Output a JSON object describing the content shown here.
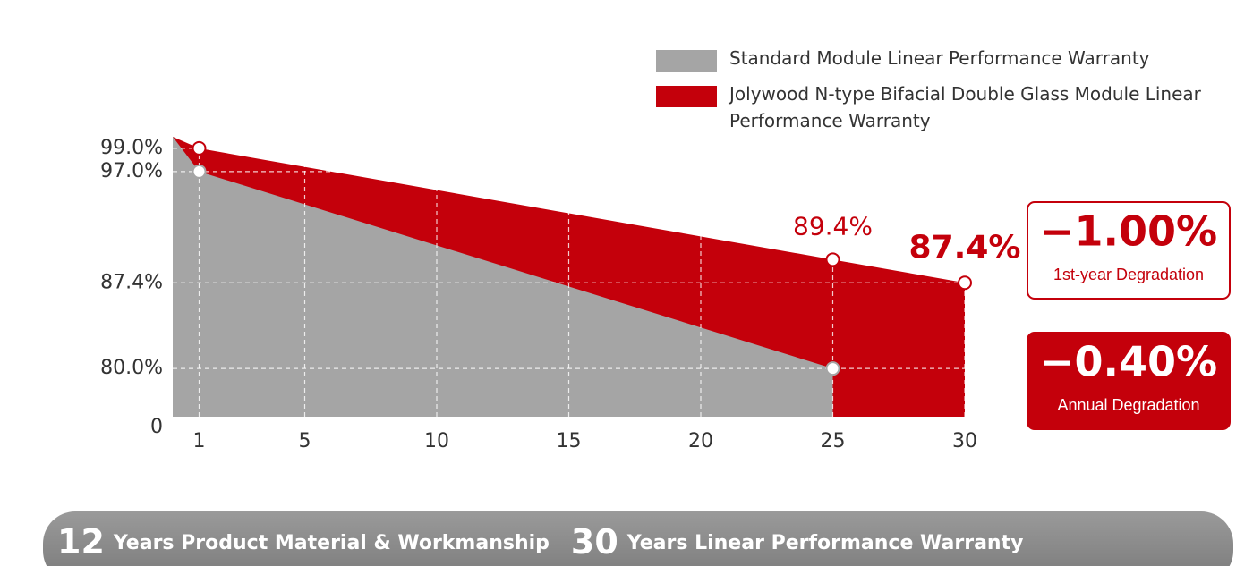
{
  "chart_data": {
    "type": "area",
    "series": [
      {
        "name": "Jolywood N-type Bifacial Double Glass Module Linear Performance Warranty",
        "color": "#c4000b",
        "x": [
          0,
          1,
          25,
          30
        ],
        "values": [
          100,
          99,
          89.4,
          87.4
        ],
        "value_labels": [
          null,
          null,
          "89.4%",
          "87.4%"
        ]
      },
      {
        "name": "Standard Module Linear Performance Warranty",
        "color": "#a5a5a5",
        "x": [
          0,
          1,
          25
        ],
        "values": [
          100,
          97,
          80
        ]
      }
    ],
    "legend_order": [
      1,
      0
    ],
    "xlim": [
      0,
      30
    ],
    "xticks": [
      1,
      5,
      10,
      15,
      20,
      25,
      30
    ],
    "ylim": [
      0,
      101
    ],
    "ybreak": [
      0,
      76
    ],
    "yticks": [
      0,
      {
        "value": 80,
        "label": "80.0%"
      },
      {
        "value": 87.4,
        "label": "87.4%"
      },
      {
        "value": 97,
        "label": "97.0%"
      },
      {
        "value": 99,
        "label": "99.0%"
      }
    ],
    "grid": true,
    "callouts": [
      {
        "value": "−1.00%",
        "label": "1st-year Degradation",
        "style": "outline"
      },
      {
        "value": "−0.40%",
        "label": "Annual Degradation",
        "style": "filled"
      }
    ],
    "banner": {
      "years1": "12",
      "text1": "Years Product Material & Workmanship",
      "years2": "30",
      "text2": "Years Linear Performance Warranty"
    }
  }
}
